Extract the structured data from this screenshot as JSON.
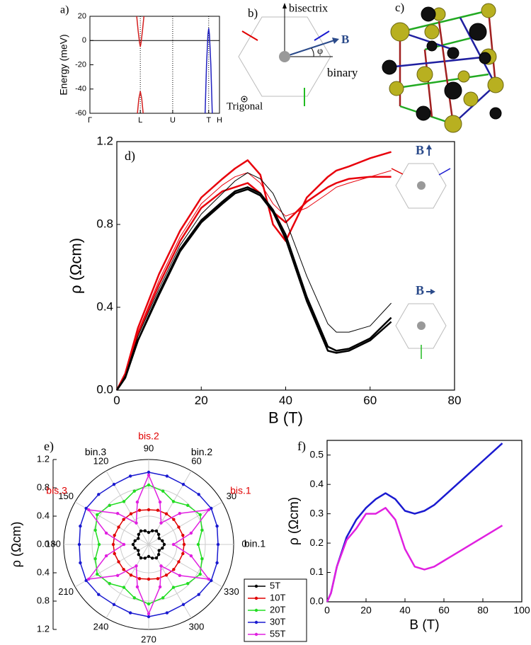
{
  "chart_data": [
    {
      "type": "line",
      "panel_label": "a)",
      "ylabel": "Energy (meV)",
      "xlim": [
        0,
        18
      ],
      "ylim": [
        -60,
        20
      ],
      "xticks": [
        {
          "value": 0,
          "label": "Γ"
        },
        {
          "value": 7,
          "label": "L"
        },
        {
          "value": 11.5,
          "label": "U"
        },
        {
          "value": 16.5,
          "label": "T"
        },
        {
          "value": 18,
          "label": "H"
        }
      ],
      "yticks": [
        -60,
        -40,
        -20,
        0,
        20
      ],
      "tick_lines": "dotted",
      "zero_line": true,
      "series": [
        {
          "color": "#d42020",
          "x": [
            6.5,
            6.7,
            6.9,
            7.0,
            7.1,
            7.3,
            7.5
          ],
          "values": [
            20,
            8,
            -2,
            -5,
            -2,
            8,
            20
          ]
        },
        {
          "color": "#d42020",
          "x": [
            6.6,
            6.8,
            7.0,
            7.2,
            7.4
          ],
          "values": [
            -60,
            -48,
            -42,
            -48,
            -60
          ]
        },
        {
          "color": "#2020c0",
          "x": [
            16.0,
            16.2,
            16.4,
            16.5,
            16.6,
            16.8,
            17.0
          ],
          "values": [
            -60,
            -20,
            5,
            10,
            5,
            -20,
            -60
          ]
        }
      ]
    },
    {
      "type": "line",
      "panel_label": "d)",
      "xlabel": "B (T)",
      "ylabel": "ρ (Ωcm)",
      "annotations": [
        "B",
        "B"
      ],
      "xlim": [
        0,
        80
      ],
      "ylim": [
        0,
        1.2
      ],
      "xticks": [
        0,
        20,
        40,
        60,
        80
      ],
      "yticks": [
        {
          "value": 0,
          "label": "0.0"
        },
        0.4,
        0.8,
        1.2
      ],
      "x": [
        0,
        2,
        5,
        10,
        15,
        20,
        25,
        28,
        31,
        34,
        37,
        40,
        45,
        50,
        52,
        55,
        60,
        65
      ],
      "series": [
        {
          "color": "#e8000b",
          "linewidth": 2.5,
          "values": [
            0,
            0.08,
            0.3,
            0.56,
            0.77,
            0.93,
            1.02,
            1.07,
            1.11,
            1.04,
            0.8,
            0.72,
            0.93,
            1.03,
            1.06,
            1.08,
            1.12,
            1.15
          ]
        },
        {
          "color": "#e8000b",
          "linewidth": 2.5,
          "values": [
            0,
            0.07,
            0.27,
            0.51,
            0.72,
            0.88,
            0.96,
            0.98,
            1.0,
            0.95,
            0.86,
            0.81,
            0.91,
            0.98,
            1.0,
            1.02,
            1.03,
            1.03
          ]
        },
        {
          "color": "#e8000b",
          "linewidth": 1,
          "values": [
            0,
            0.08,
            0.28,
            0.53,
            0.74,
            0.9,
            0.99,
            1.03,
            1.05,
            1.0,
            0.9,
            0.84,
            0.88,
            0.95,
            0.98,
            1.0,
            1.03,
            1.06
          ]
        },
        {
          "color": "#000000",
          "linewidth": 1,
          "values": [
            0,
            0.07,
            0.26,
            0.49,
            0.7,
            0.85,
            0.95,
            1.01,
            1.05,
            1.02,
            0.95,
            0.82,
            0.55,
            0.32,
            0.28,
            0.28,
            0.31,
            0.42
          ]
        },
        {
          "color": "#000000",
          "linewidth": 2.5,
          "values": [
            0,
            0.06,
            0.24,
            0.47,
            0.68,
            0.82,
            0.91,
            0.96,
            0.98,
            0.95,
            0.87,
            0.75,
            0.45,
            0.21,
            0.19,
            0.2,
            0.25,
            0.35
          ]
        },
        {
          "color": "#000000",
          "linewidth": 2.5,
          "values": [
            0,
            0.06,
            0.24,
            0.46,
            0.67,
            0.81,
            0.9,
            0.95,
            0.97,
            0.94,
            0.86,
            0.73,
            0.43,
            0.19,
            0.18,
            0.19,
            0.24,
            0.33
          ]
        }
      ]
    },
    {
      "type": "polar",
      "panel_label": "e)",
      "ylabel": "ρ (Ωcm)",
      "legend": "lower right",
      "rlim": [
        0,
        1.2
      ],
      "rticks": [
        {
          "value": 0,
          "label": "0.0"
        },
        0.4,
        0.8,
        1.2
      ],
      "thetaticks": [
        0,
        30,
        60,
        90,
        120,
        150,
        180,
        210,
        240,
        270,
        300,
        330
      ],
      "theta_annotations": [
        {
          "theta": 0,
          "label": "bin.1",
          "color": "#000000"
        },
        {
          "theta": 30,
          "label": "bis.1",
          "color": "#e00000"
        },
        {
          "theta": 60,
          "label": "bin.2",
          "color": "#000000"
        },
        {
          "theta": 90,
          "label": "bis.2",
          "color": "#e00000"
        },
        {
          "theta": 120,
          "label": "bin.3",
          "color": "#000000"
        },
        {
          "theta": 150,
          "label": "bis.3",
          "color": "#e00000"
        }
      ],
      "theta": [
        0,
        15,
        30,
        45,
        60,
        75,
        90,
        105,
        120,
        135,
        150,
        165,
        180,
        195,
        210,
        225,
        240,
        255,
        270,
        285,
        300,
        315,
        330,
        345
      ],
      "series": [
        {
          "name": "5T",
          "color": "#000000",
          "values": [
            0.22,
            0.2,
            0.17,
            0.2,
            0.22,
            0.2,
            0.17,
            0.2,
            0.22,
            0.2,
            0.17,
            0.2,
            0.22,
            0.2,
            0.17,
            0.2,
            0.22,
            0.2,
            0.17,
            0.2,
            0.22,
            0.2,
            0.17,
            0.2
          ]
        },
        {
          "name": "10T",
          "color": "#e00000",
          "values": [
            0.5,
            0.5,
            0.49,
            0.5,
            0.5,
            0.5,
            0.49,
            0.5,
            0.5,
            0.5,
            0.49,
            0.5,
            0.5,
            0.5,
            0.49,
            0.5,
            0.5,
            0.5,
            0.49,
            0.5,
            0.5,
            0.5,
            0.49,
            0.5
          ]
        },
        {
          "name": "20T",
          "color": "#22dd22",
          "values": [
            0.7,
            0.78,
            0.84,
            0.78,
            0.7,
            0.78,
            0.84,
            0.78,
            0.7,
            0.78,
            0.84,
            0.78,
            0.7,
            0.78,
            0.84,
            0.78,
            0.7,
            0.78,
            0.84,
            0.78,
            0.7,
            0.78,
            0.84,
            0.78
          ]
        },
        {
          "name": "30T",
          "color": "#1a1ad0",
          "values": [
            0.98,
            1.0,
            1.02,
            1.0,
            0.98,
            1.0,
            1.02,
            1.0,
            0.98,
            1.0,
            1.02,
            1.0,
            0.98,
            1.0,
            1.02,
            1.0,
            0.98,
            1.0,
            1.02,
            1.0,
            0.98,
            1.0,
            1.02,
            1.0
          ]
        },
        {
          "name": "55T",
          "color": "#e020e0",
          "values": [
            0.35,
            0.62,
            0.98,
            0.62,
            0.35,
            0.62,
            0.98,
            0.62,
            0.35,
            0.62,
            0.98,
            0.62,
            0.35,
            0.62,
            0.98,
            0.62,
            0.35,
            0.62,
            0.98,
            0.62,
            0.35,
            0.62,
            0.98,
            0.62
          ]
        }
      ]
    },
    {
      "type": "line",
      "panel_label": "f)",
      "xlabel": "B (T)",
      "ylabel": "ρ (Ωcm)",
      "xlim": [
        0,
        100
      ],
      "ylim": [
        0,
        0.55
      ],
      "xticks": [
        0,
        20,
        40,
        60,
        80,
        100
      ],
      "yticks": [
        {
          "value": 0,
          "label": "0.0"
        },
        0.1,
        0.2,
        0.3,
        0.4,
        0.5
      ],
      "x": [
        0,
        2,
        5,
        10,
        15,
        20,
        25,
        30,
        35,
        40,
        45,
        50,
        55,
        60,
        70,
        80,
        90
      ],
      "series": [
        {
          "color": "#1a1ad0",
          "linewidth": 2.5,
          "values": [
            0,
            0.03,
            0.12,
            0.22,
            0.28,
            0.32,
            0.35,
            0.37,
            0.35,
            0.31,
            0.3,
            0.31,
            0.33,
            0.36,
            0.42,
            0.48,
            0.54
          ]
        },
        {
          "color": "#e020e0",
          "linewidth": 2.5,
          "values": [
            0,
            0.03,
            0.12,
            0.21,
            0.25,
            0.3,
            0.3,
            0.32,
            0.28,
            0.18,
            0.12,
            0.11,
            0.12,
            0.14,
            0.18,
            0.22,
            0.26
          ]
        }
      ]
    }
  ],
  "diagram_b": {
    "label": "b)",
    "axis_up": "bisectrix",
    "field": "B",
    "axis_right": "binary",
    "angle": "φ",
    "trigonal": "Trigonal"
  },
  "image_c": {
    "label": "c)"
  }
}
